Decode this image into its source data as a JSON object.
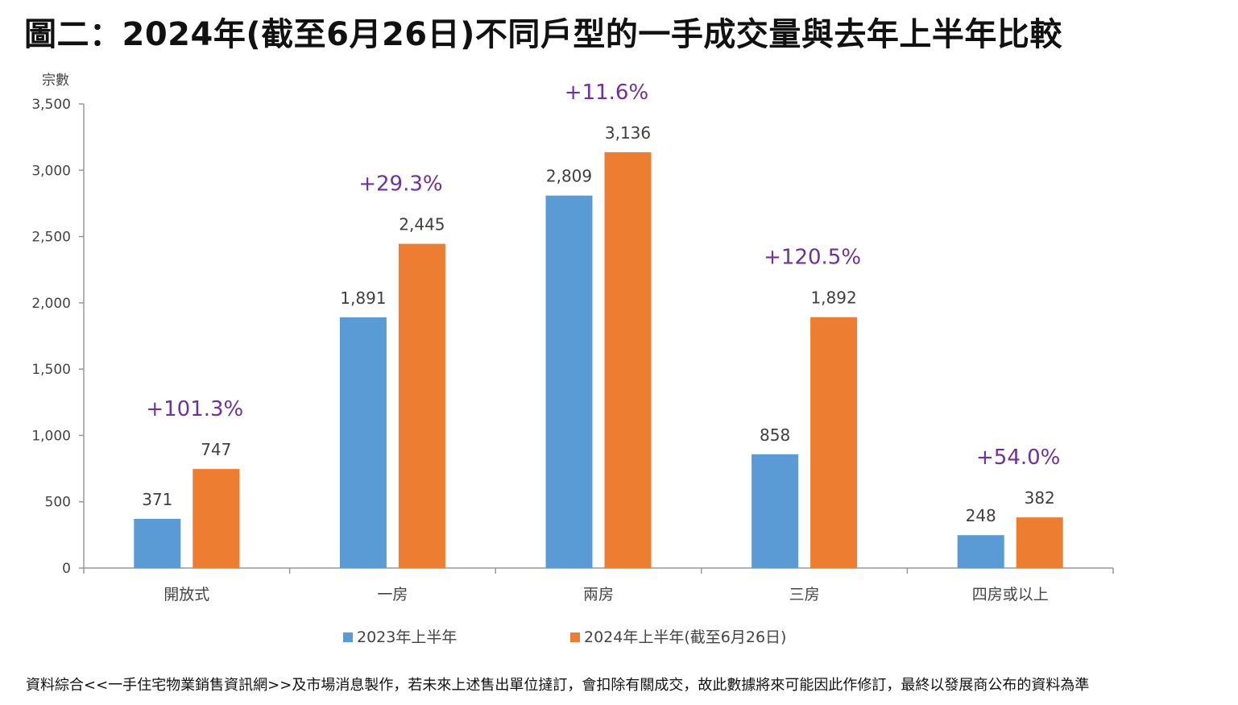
{
  "title": "圖二：2024年(截至6月26日)不同戶型的一手成交量與去年上半年比較",
  "footnote": "資料綜合<<一手住宅物業銷售資訊網>>及市場消息製作，若未來上述售出單位撻訂，會扣除有關成交，故此數據將來可能因此作修訂，最終以發展商公布的資料為準",
  "colors": {
    "series1": "#5b9bd5",
    "series2": "#ed7d31",
    "change": "#7030a0",
    "axis": "#999999"
  },
  "chart_data": {
    "type": "bar",
    "title": "圖二：2024年(截至6月26日)不同戶型的一手成交量與去年上半年比較",
    "ylabel": "宗數",
    "xlabel": "",
    "ylim": [
      0,
      3500
    ],
    "yticks": [
      0,
      500,
      1000,
      1500,
      2000,
      2500,
      3000,
      3500
    ],
    "ytick_labels": [
      "0",
      "500",
      "1,000",
      "1,500",
      "2,000",
      "2,500",
      "3,000",
      "3,500"
    ],
    "grid": false,
    "legend_position": "bottom",
    "categories": [
      "開放式",
      "一房",
      "兩房",
      "三房",
      "四房或以上"
    ],
    "series": [
      {
        "name": "2023年上半年",
        "values": [
          371,
          1891,
          2809,
          858,
          248
        ],
        "labels": [
          "371",
          "1,891",
          "2,809",
          "858",
          "248"
        ]
      },
      {
        "name": "2024年上半年(截至6月26日)",
        "values": [
          747,
          2445,
          3136,
          1892,
          382
        ],
        "labels": [
          "747",
          "2,445",
          "3,136",
          "1,892",
          "382"
        ]
      }
    ],
    "change_labels": [
      "+101.3%",
      "+29.3%",
      "+11.6%",
      "+120.5%",
      "+54.0%"
    ]
  }
}
